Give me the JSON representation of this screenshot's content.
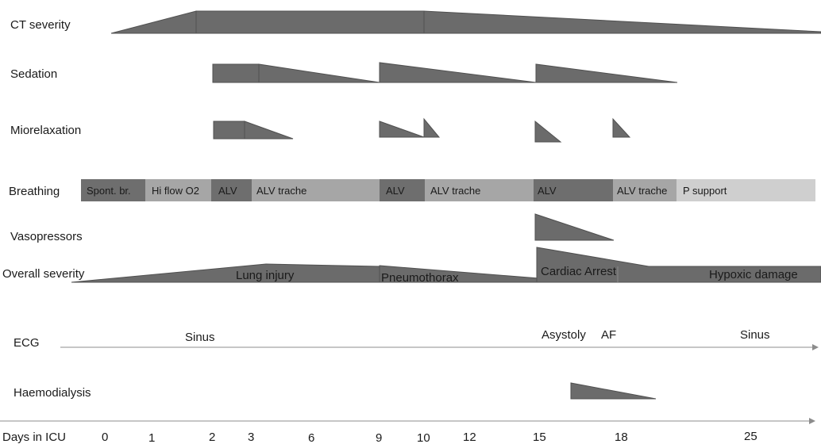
{
  "rows": {
    "ct_severity": "CT severity",
    "sedation": "Sedation",
    "miorelaxation": "Miorelaxation",
    "breathing": "Breathing",
    "vasopressors": "Vasopressors",
    "overall_severity": "Overall severity",
    "ecg": "ECG",
    "haemodialysis": "Haemodialysis",
    "days": "Days in ICU"
  },
  "breathing_segments": [
    {
      "label": "Spont. br.",
      "shade": "dark"
    },
    {
      "label": "Hi flow O2",
      "shade": "light"
    },
    {
      "label": "ALV",
      "shade": "dark"
    },
    {
      "label": "ALV trache",
      "shade": "light"
    },
    {
      "label": "ALV",
      "shade": "dark"
    },
    {
      "label": "ALV trache",
      "shade": "light"
    },
    {
      "label": "ALV",
      "shade": "dark"
    },
    {
      "label": "ALV trache",
      "shade": "light"
    },
    {
      "label": "P support",
      "shade": "lighter"
    }
  ],
  "severity_labels": [
    "Lung injury",
    "Pneumothorax",
    "Cardiac Arrest",
    "Hypoxic damage"
  ],
  "ecg_labels": [
    "Sinus",
    "Asystoly",
    "AF",
    "Sinus"
  ],
  "day_ticks": [
    "0",
    "1",
    "2",
    "3",
    "6",
    "9",
    "10",
    "12",
    "15",
    "18",
    "25"
  ],
  "colors": {
    "shape_fill": "#6b6b6b",
    "shape_stroke": "#505050",
    "bar_dark": "#6e6e6e",
    "bar_light": "#a6a6a6",
    "bar_lighter": "#cfcfcf",
    "axis": "#8c8c8c"
  }
}
